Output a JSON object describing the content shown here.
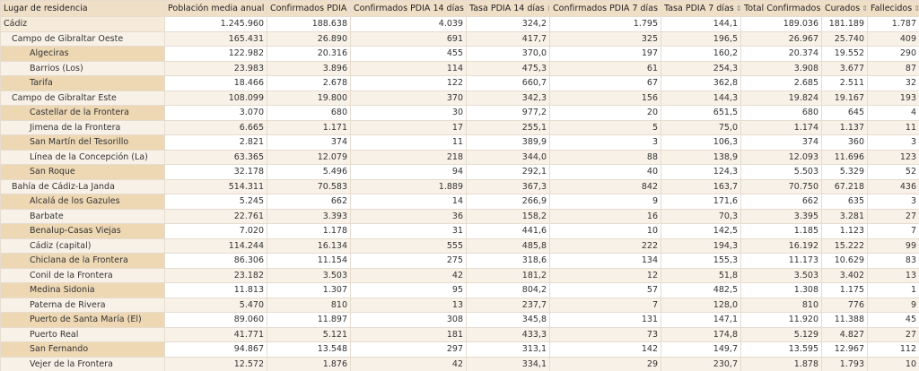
{
  "table": {
    "header": [
      "Lugar de residencia",
      "Población media anual",
      "Confirmados PDIA",
      "Confirmados PDIA 14 días",
      "Tasa PDIA 14 días",
      "Confirmados PDIA 7 días",
      "Tasa PDIA 7 días",
      "Total Confirmados",
      "Curados",
      "Fallecidos"
    ],
    "rows": [
      [
        "Cádiz",
        "1.245.960",
        "188.638",
        "4.039",
        "324,2",
        "1.795",
        "144,1",
        "189.036",
        "181.189",
        "1.787"
      ],
      [
        "Campo de Gibraltar Oeste",
        "165.431",
        "26.890",
        "691",
        "417,7",
        "325",
        "196,5",
        "26.967",
        "25.740",
        "409"
      ],
      [
        "Algeciras",
        "122.982",
        "20.316",
        "455",
        "370,0",
        "197",
        "160,2",
        "20.374",
        "19.552",
        "290"
      ],
      [
        "Barrios (Los)",
        "23.983",
        "3.896",
        "114",
        "475,3",
        "61",
        "254,3",
        "3.908",
        "3.677",
        "87"
      ],
      [
        "Tarifa",
        "18.466",
        "2.678",
        "122",
        "660,7",
        "67",
        "362,8",
        "2.685",
        "2.511",
        "32"
      ],
      [
        "Campo de Gibraltar Este",
        "108.099",
        "19.800",
        "370",
        "342,3",
        "156",
        "144,3",
        "19.824",
        "19.167",
        "193"
      ],
      [
        "Castellar de la Frontera",
        "3.070",
        "680",
        "30",
        "977,2",
        "20",
        "651,5",
        "680",
        "645",
        "4"
      ],
      [
        "Jimena de la Frontera",
        "6.665",
        "1.171",
        "17",
        "255,1",
        "5",
        "75,0",
        "1.174",
        "1.137",
        "11"
      ],
      [
        "San Martín del Tesorillo",
        "2.821",
        "374",
        "11",
        "389,9",
        "3",
        "106,3",
        "374",
        "360",
        "3"
      ],
      [
        "Línea de la Concepción (La)",
        "63.365",
        "12.079",
        "218",
        "344,0",
        "88",
        "138,9",
        "12.093",
        "11.696",
        "123"
      ],
      [
        "San Roque",
        "32.178",
        "5.496",
        "94",
        "292,1",
        "40",
        "124,3",
        "5.503",
        "5.329",
        "52"
      ],
      [
        "Bahía de Cádiz-La Janda",
        "514.311",
        "70.583",
        "1.889",
        "367,3",
        "842",
        "163,7",
        "70.750",
        "67.218",
        "436"
      ],
      [
        "Alcalá de los Gazules",
        "5.245",
        "662",
        "14",
        "266,9",
        "9",
        "171,6",
        "662",
        "635",
        "3"
      ],
      [
        "Barbate",
        "22.761",
        "3.393",
        "36",
        "158,2",
        "16",
        "70,3",
        "3.395",
        "3.281",
        "27"
      ],
      [
        "Benalup-Casas Viejas",
        "7.020",
        "1.178",
        "31",
        "441,6",
        "10",
        "142,5",
        "1.185",
        "1.123",
        "7"
      ],
      [
        "Cádiz (capital)",
        "114.244",
        "16.134",
        "555",
        "485,8",
        "222",
        "194,3",
        "16.192",
        "15.222",
        "99"
      ],
      [
        "Chiclana de la Frontera",
        "86.306",
        "11.154",
        "275",
        "318,6",
        "134",
        "155,3",
        "11.173",
        "10.629",
        "83"
      ],
      [
        "Conil de la Frontera",
        "23.182",
        "3.503",
        "42",
        "181,2",
        "12",
        "51,8",
        "3.503",
        "3.402",
        "13"
      ],
      [
        "Medina Sidonia",
        "11.813",
        "1.307",
        "95",
        "804,2",
        "57",
        "482,5",
        "1.308",
        "1.175",
        "1"
      ],
      [
        "Paterna de Rivera",
        "5.470",
        "810",
        "13",
        "237,7",
        "7",
        "128,0",
        "810",
        "776",
        "9"
      ],
      [
        "Puerto de Santa María (El)",
        "89.060",
        "11.897",
        "308",
        "345,8",
        "131",
        "147,1",
        "11.920",
        "11.388",
        "45"
      ],
      [
        "Puerto Real",
        "41.771",
        "5.121",
        "181",
        "433,3",
        "73",
        "174,8",
        "5.129",
        "4.827",
        "27"
      ],
      [
        "San Fernando",
        "94.867",
        "13.548",
        "297",
        "313,1",
        "142",
        "149,7",
        "13.595",
        "12.967",
        "112"
      ],
      [
        "Vejer de la Frontera",
        "12.572",
        "1.876",
        "42",
        "334,1",
        "29",
        "230,7",
        "1.878",
        "1.793",
        "10"
      ]
    ]
  }
}
